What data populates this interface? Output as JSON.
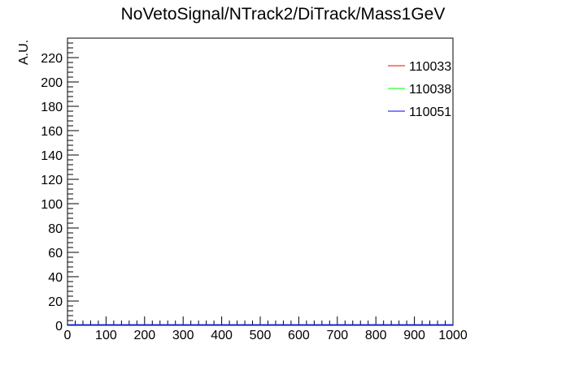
{
  "chart_data": {
    "type": "line",
    "title": "NoVetoSignal/NTrack2/DiTrack/Mass1GeV",
    "xlabel": "",
    "ylabel": "A.U.",
    "xlim": [
      0,
      1000
    ],
    "ylim": [
      0,
      236
    ],
    "x_ticks": [
      0,
      100,
      200,
      300,
      400,
      500,
      600,
      700,
      800,
      900,
      1000
    ],
    "y_ticks": [
      0,
      20,
      40,
      60,
      80,
      100,
      120,
      140,
      160,
      180,
      200,
      220
    ],
    "grid": false,
    "legend_position": "top-right",
    "series": [
      {
        "name": "110033",
        "color": "#ff0000",
        "x": [
          0,
          1000
        ],
        "values": [
          0,
          0
        ]
      },
      {
        "name": "110038",
        "color": "#00ff00",
        "x": [
          0,
          1000
        ],
        "values": [
          0,
          0
        ]
      },
      {
        "name": "110051",
        "color": "#0000ff",
        "x": [
          0,
          1000
        ],
        "values": [
          0,
          0
        ]
      }
    ]
  }
}
